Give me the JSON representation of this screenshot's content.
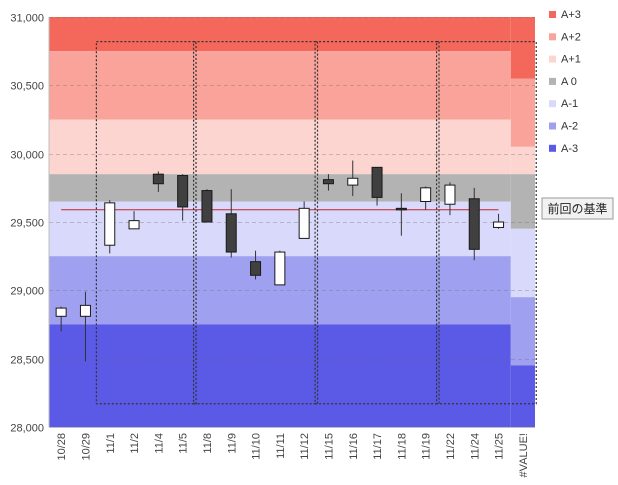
{
  "chart_data": {
    "type": "candlestick",
    "categories": [
      "10/28",
      "10/29",
      "11/1",
      "11/2",
      "11/4",
      "11/5",
      "11/8",
      "11/9",
      "11/10",
      "11/11",
      "11/12",
      "11/15",
      "11/16",
      "11/17",
      "11/18",
      "11/19",
      "11/22",
      "11/24",
      "11/25",
      "#VALUE!"
    ],
    "ohlc": [
      {
        "open": 28810,
        "high": 28880,
        "low": 28700,
        "close": 28870
      },
      {
        "open": 28810,
        "high": 28990,
        "low": 28480,
        "close": 28890
      },
      {
        "open": 29330,
        "high": 29660,
        "low": 29270,
        "close": 29640
      },
      {
        "open": 29450,
        "high": 29580,
        "low": 29450,
        "close": 29510
      },
      {
        "open": 29850,
        "high": 29870,
        "low": 29720,
        "close": 29780
      },
      {
        "open": 29840,
        "high": 29850,
        "low": 29510,
        "close": 29610
      },
      {
        "open": 29730,
        "high": 29740,
        "low": 29500,
        "close": 29500
      },
      {
        "open": 29560,
        "high": 29740,
        "low": 29240,
        "close": 29280
      },
      {
        "open": 29210,
        "high": 29290,
        "low": 29080,
        "close": 29110
      },
      {
        "open": 29040,
        "high": 29290,
        "low": 29040,
        "close": 29280
      },
      {
        "open": 29380,
        "high": 29650,
        "low": 29380,
        "close": 29600
      },
      {
        "open": 29810,
        "high": 29850,
        "low": 29730,
        "close": 29780
      },
      {
        "open": 29770,
        "high": 29950,
        "low": 29690,
        "close": 29820
      },
      {
        "open": 29900,
        "high": 29900,
        "low": 29620,
        "close": 29680
      },
      {
        "open": 29600,
        "high": 29710,
        "low": 29400,
        "close": 29590
      },
      {
        "open": 29650,
        "high": 29760,
        "low": 29590,
        "close": 29750
      },
      {
        "open": 29630,
        "high": 29790,
        "low": 29550,
        "close": 29770
      },
      {
        "open": 29670,
        "high": 29750,
        "low": 29220,
        "close": 29300
      },
      {
        "open": 29460,
        "high": 29560,
        "low": 29450,
        "close": 29500
      },
      null
    ],
    "reference_line": {
      "label": "前回の基準",
      "value": 29590,
      "color": "#c0272d"
    },
    "band_shift_index": 19,
    "bands": [
      {
        "name": "A+3",
        "color": "#f4685c",
        "from": [
          30750,
          30550
        ],
        "to": [
          31000,
          31000
        ]
      },
      {
        "name": "A+2",
        "color": "#f9a39b",
        "from": [
          30250,
          30050
        ],
        "to": [
          30750,
          30550
        ]
      },
      {
        "name": "A+1",
        "color": "#fcd5d1",
        "from": [
          29850,
          29850
        ],
        "to": [
          30250,
          30050
        ]
      },
      {
        "name": "A 0",
        "color": "#b3b3b3",
        "from": [
          29650,
          29450
        ],
        "to": [
          29850,
          29850
        ]
      },
      {
        "name": "A-1",
        "color": "#d9d9fb",
        "from": [
          29250,
          28950
        ],
        "to": [
          29650,
          29450
        ]
      },
      {
        "name": "A-2",
        "color": "#9fa0ef",
        "from": [
          28750,
          28450
        ],
        "to": [
          29250,
          28950
        ]
      },
      {
        "name": "A-3",
        "color": "#5a5ae6",
        "from": [
          28000,
          28000
        ],
        "to": [
          28750,
          28450
        ]
      }
    ],
    "week_groups": [
      [
        2,
        5
      ],
      [
        6,
        10
      ],
      [
        11,
        15
      ],
      [
        16,
        19
      ]
    ],
    "yticks": [
      28000,
      28500,
      29000,
      29500,
      30000,
      30500,
      31000
    ],
    "ytick_labels": [
      "28,000",
      "28,500",
      "29,000",
      "29,500",
      "30,000",
      "30,500",
      "31,000"
    ],
    "ylim": [
      28000,
      31000
    ],
    "grid": true,
    "legend_placement": "right",
    "title": "",
    "xlabel": "",
    "ylabel": "",
    "colors": {
      "up": "#ffffff",
      "down": "#404040",
      "wick": "#333333"
    }
  }
}
